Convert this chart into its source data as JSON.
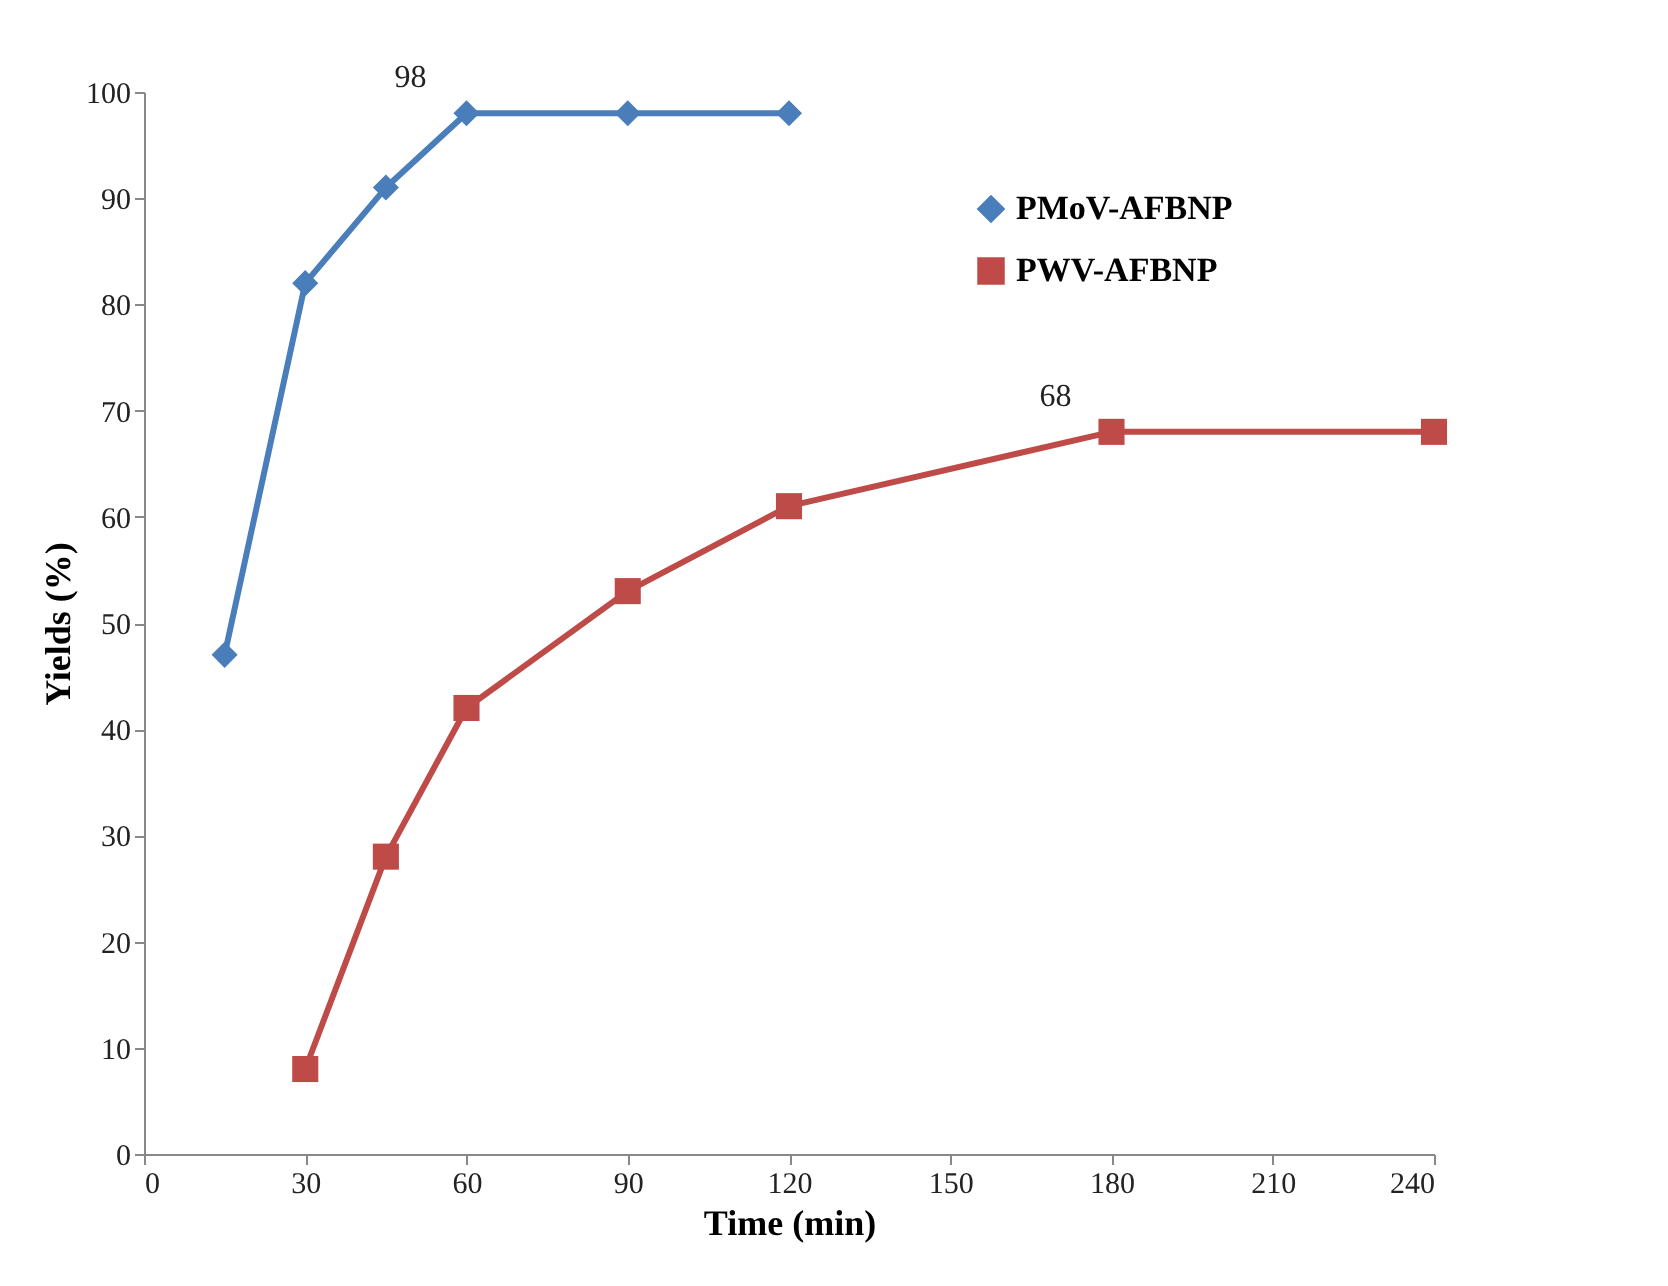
{
  "chart_data": {
    "type": "line",
    "xlabel": "Time (min)",
    "ylabel": "Yields (%)",
    "xlim": [
      0,
      240
    ],
    "xticks": [
      0,
      30,
      60,
      90,
      120,
      150,
      180,
      210,
      240
    ],
    "ylim": [
      0,
      100
    ],
    "yticks": [
      0,
      10,
      20,
      30,
      40,
      50,
      60,
      70,
      80,
      90,
      100
    ],
    "grid": false,
    "legend": "top right",
    "line_style": "solid",
    "series": [
      {
        "name": "PMoV-AFBNP",
        "color": "#4a7ebb",
        "marker": "diamond",
        "x": [
          15,
          30,
          45,
          60,
          90,
          120
        ],
        "values": [
          47,
          82,
          91,
          98,
          98,
          98
        ]
      },
      {
        "name": "PWV-AFBNP",
        "color": "#be4b48",
        "marker": "square",
        "x": [
          30,
          45,
          60,
          90,
          120,
          180,
          240
        ],
        "values": [
          8,
          28,
          42,
          53,
          61,
          68,
          68
        ]
      }
    ],
    "annotations": [
      {
        "text": "98",
        "x": 60,
        "y": 98
      },
      {
        "text": "68",
        "x": 180,
        "y": 68
      }
    ]
  }
}
